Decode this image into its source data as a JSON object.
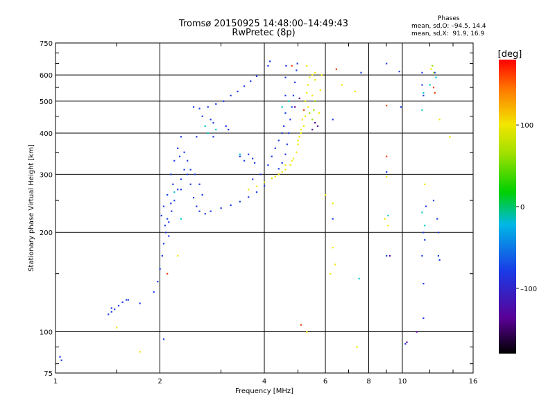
{
  "chart_data": {
    "type": "scatter",
    "title": "Tromsø 20150925 14:48:00–14:49:43",
    "subtitle": "RwPretec (8p)",
    "xlabel": "Frequency [MHz]",
    "ylabel": "Stationary phase Virtual Height [km]",
    "x_scale": "log",
    "y_scale": "log",
    "xlim": [
      1,
      16
    ],
    "ylim": [
      75,
      750
    ],
    "x_ticks": [
      1,
      2,
      4,
      6,
      8,
      10,
      16
    ],
    "y_ticks": [
      75,
      100,
      200,
      300,
      400,
      500,
      600,
      750
    ],
    "grid": true,
    "phases_box": {
      "title": "Phases",
      "o_line": "mean, sd,O: –94.5, 14.4",
      "x_line": "mean, sd,X:  91.9, 16.9"
    },
    "colorbar": {
      "label": "[deg]",
      "range": [
        -180,
        180
      ],
      "ticks": [
        "100",
        "0",
        "–100"
      ],
      "tick_values": [
        100,
        0,
        -100
      ]
    },
    "series": [
      {
        "phase": -100,
        "color": "#1a3ae6",
        "points": [
          [
            1.03,
            84
          ],
          [
            1.04,
            82
          ],
          [
            1.42,
            113
          ],
          [
            1.45,
            115
          ],
          [
            1.48,
            117
          ],
          [
            1.52,
            120
          ],
          [
            1.56,
            123
          ],
          [
            1.62,
            125
          ],
          [
            1.75,
            122
          ],
          [
            1.92,
            132
          ],
          [
            1.97,
            142
          ],
          [
            2.0,
            155
          ],
          [
            2.03,
            170
          ],
          [
            2.05,
            185
          ],
          [
            2.08,
            200
          ],
          [
            2.12,
            215
          ],
          [
            2.16,
            232
          ],
          [
            2.2,
            250
          ],
          [
            2.25,
            270
          ],
          [
            2.3,
            290
          ],
          [
            2.35,
            310
          ],
          [
            2.4,
            300
          ],
          [
            2.45,
            280
          ],
          [
            2.5,
            255
          ],
          [
            2.55,
            240
          ],
          [
            2.6,
            232
          ],
          [
            2.7,
            228
          ],
          [
            2.8,
            232
          ],
          [
            3.0,
            237
          ],
          [
            3.2,
            242
          ],
          [
            3.4,
            248
          ],
          [
            3.6,
            256
          ],
          [
            3.8,
            265
          ],
          [
            4.0,
            277
          ],
          [
            4.2,
            292
          ],
          [
            4.4,
            312
          ],
          [
            4.5,
            325
          ],
          [
            4.6,
            345
          ],
          [
            4.65,
            370
          ],
          [
            4.7,
            400
          ],
          [
            4.75,
            440
          ],
          [
            4.8,
            480
          ],
          [
            4.85,
            520
          ],
          [
            4.9,
            570
          ],
          [
            4.95,
            620
          ],
          [
            4.98,
            650
          ],
          [
            4.55,
            420
          ],
          [
            4.6,
            460
          ],
          [
            4.6,
            520
          ],
          [
            4.6,
            590
          ],
          [
            4.62,
            640
          ],
          [
            4.5,
            400
          ],
          [
            4.4,
            380
          ],
          [
            4.3,
            360
          ],
          [
            4.2,
            340
          ],
          [
            4.1,
            320
          ],
          [
            3.9,
            300
          ],
          [
            3.7,
            290
          ],
          [
            4.1,
            640
          ],
          [
            4.15,
            660
          ],
          [
            2.2,
            330
          ],
          [
            2.25,
            360
          ],
          [
            2.3,
            390
          ],
          [
            2.28,
            340
          ],
          [
            2.15,
            300
          ],
          [
            2.18,
            280
          ],
          [
            2.35,
            350
          ],
          [
            2.3,
            270
          ],
          [
            2.1,
            260
          ],
          [
            2.05,
            240
          ],
          [
            2.02,
            225
          ],
          [
            2.07,
            210
          ],
          [
            2.12,
            195
          ],
          [
            2.1,
            220
          ],
          [
            2.15,
            245
          ],
          [
            2.4,
            330
          ],
          [
            2.45,
            310
          ],
          [
            2.52,
            300
          ],
          [
            2.6,
            280
          ],
          [
            2.65,
            260
          ],
          [
            2.5,
            480
          ],
          [
            2.6,
            475
          ],
          [
            2.75,
            480
          ],
          [
            2.9,
            490
          ],
          [
            3.05,
            500
          ],
          [
            3.2,
            520
          ],
          [
            3.35,
            535
          ],
          [
            3.5,
            555
          ],
          [
            3.65,
            575
          ],
          [
            3.8,
            595
          ],
          [
            2.8,
            440
          ],
          [
            2.85,
            430
          ],
          [
            3.1,
            420
          ],
          [
            3.15,
            410
          ],
          [
            2.85,
            390
          ],
          [
            3.4,
            340
          ],
          [
            3.5,
            330
          ],
          [
            3.6,
            345
          ],
          [
            3.7,
            335
          ],
          [
            3.75,
            325
          ],
          [
            2.65,
            450
          ],
          [
            2.55,
            390
          ],
          [
            6.3,
            440
          ],
          [
            6.3,
            220
          ],
          [
            7.6,
            610
          ],
          [
            9.0,
            650
          ],
          [
            9.0,
            305
          ],
          [
            9.0,
            170
          ],
          [
            9.8,
            615
          ],
          [
            9.9,
            480
          ],
          [
            10.2,
            92
          ],
          [
            11.4,
            610
          ],
          [
            11.4,
            560
          ],
          [
            11.5,
            520
          ],
          [
            11.5,
            200
          ],
          [
            11.6,
            190
          ],
          [
            11.4,
            170
          ],
          [
            11.5,
            140
          ],
          [
            11.5,
            110
          ],
          [
            11.7,
            240
          ],
          [
            12.3,
            250
          ],
          [
            12.4,
            610
          ],
          [
            12.6,
            220
          ],
          [
            12.7,
            200
          ],
          [
            12.7,
            170
          ],
          [
            12.8,
            165
          ],
          [
            2.05,
            95
          ],
          [
            1.45,
            118
          ],
          [
            1.6,
            125
          ]
        ]
      },
      {
        "phase": 100,
        "color": "#f2e600",
        "points": [
          [
            3.6,
            270
          ],
          [
            3.8,
            276
          ],
          [
            4.0,
            284
          ],
          [
            4.2,
            292
          ],
          [
            4.4,
            300
          ],
          [
            4.6,
            310
          ],
          [
            4.75,
            320
          ],
          [
            4.85,
            335
          ],
          [
            4.95,
            350
          ],
          [
            5.0,
            370
          ],
          [
            5.05,
            390
          ],
          [
            5.1,
            410
          ],
          [
            5.15,
            440
          ],
          [
            5.2,
            470
          ],
          [
            5.25,
            500
          ],
          [
            5.3,
            530
          ],
          [
            5.35,
            560
          ],
          [
            5.4,
            590
          ],
          [
            5.3,
            640
          ],
          [
            5.5,
            600
          ],
          [
            5.6,
            580
          ],
          [
            5.5,
            520
          ],
          [
            5.2,
            420
          ],
          [
            5.0,
            380
          ],
          [
            4.8,
            330
          ],
          [
            4.6,
            320
          ],
          [
            4.5,
            305
          ],
          [
            4.3,
            295
          ],
          [
            5.75,
            460
          ],
          [
            5.8,
            540
          ],
          [
            5.85,
            600
          ],
          [
            5.1,
            400
          ],
          [
            5.25,
            450
          ],
          [
            5.35,
            480
          ],
          [
            6.0,
            260
          ],
          [
            6.3,
            245
          ],
          [
            6.3,
            180
          ],
          [
            6.4,
            160
          ],
          [
            7.4,
            90
          ],
          [
            8.9,
            220
          ],
          [
            9.0,
            295
          ],
          [
            9.1,
            210
          ],
          [
            11.6,
            280
          ],
          [
            12.1,
            625
          ],
          [
            12.8,
            440
          ],
          [
            13.7,
            390
          ],
          [
            1.5,
            103
          ],
          [
            1.75,
            87
          ],
          [
            2.25,
            170
          ],
          [
            6.2,
            150
          ],
          [
            7.3,
            535
          ],
          [
            5.3,
            100
          ],
          [
            5.6,
            610
          ],
          [
            6.7,
            560
          ]
        ]
      },
      {
        "phase": 60,
        "color": "#9be000",
        "points": [
          [
            5.4,
            460
          ],
          [
            5.5,
            440
          ],
          [
            5.55,
            470
          ],
          [
            5.6,
            500
          ],
          [
            12.2,
            640
          ],
          [
            12.3,
            610
          ]
        ]
      },
      {
        "phase": 150,
        "color": "#e83c00",
        "points": [
          [
            6.45,
            625
          ],
          [
            9.0,
            485
          ],
          [
            9.0,
            340
          ],
          [
            12.3,
            550
          ],
          [
            12.4,
            530
          ],
          [
            4.8,
            640
          ],
          [
            5.2,
            470
          ],
          [
            5.1,
            105
          ],
          [
            2.1,
            150
          ]
        ]
      },
      {
        "phase": -10,
        "color": "#00c8c8",
        "points": [
          [
            2.7,
            420
          ],
          [
            2.75,
            400
          ],
          [
            2.9,
            410
          ],
          [
            3.4,
            345
          ],
          [
            11.4,
            470
          ],
          [
            11.5,
            530
          ],
          [
            11.4,
            230
          ],
          [
            11.6,
            210
          ],
          [
            7.5,
            145
          ],
          [
            9.1,
            225
          ],
          [
            2.2,
            265
          ],
          [
            2.3,
            220
          ],
          [
            4.5,
            480
          ],
          [
            4.7,
            500
          ],
          [
            12.5,
            590
          ],
          [
            12.0,
            560
          ]
        ]
      },
      {
        "phase": -150,
        "color": "#5a0096",
        "points": [
          [
            5.6,
            430
          ],
          [
            5.7,
            420
          ],
          [
            5.5,
            410
          ],
          [
            4.9,
            480
          ],
          [
            5.05,
            510
          ],
          [
            11.0,
            100
          ],
          [
            10.3,
            93
          ],
          [
            9.2,
            170
          ]
        ]
      }
    ]
  }
}
